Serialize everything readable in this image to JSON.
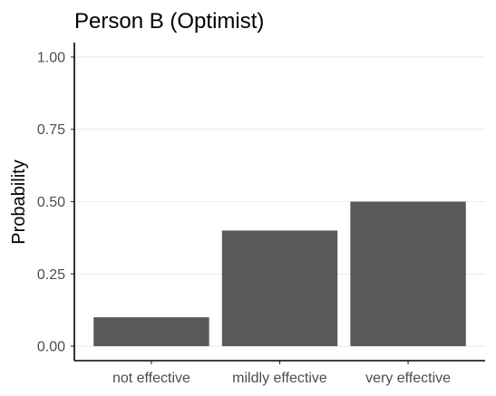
{
  "chart_data": {
    "type": "bar",
    "title": "Person B (Optimist)",
    "xlabel": "",
    "ylabel": "Probability",
    "categories": [
      "not effective",
      "mildly effective",
      "very effective"
    ],
    "values": [
      0.1,
      0.4,
      0.5
    ],
    "ylim": [
      0,
      1
    ],
    "yticks": [
      "0.00",
      "0.25",
      "0.50",
      "0.75",
      "1.00"
    ],
    "grid": "horizontal",
    "legend": "none",
    "bar_color": "#595959",
    "gridline_color": "#ebebeb",
    "axis_color": "#000000"
  }
}
